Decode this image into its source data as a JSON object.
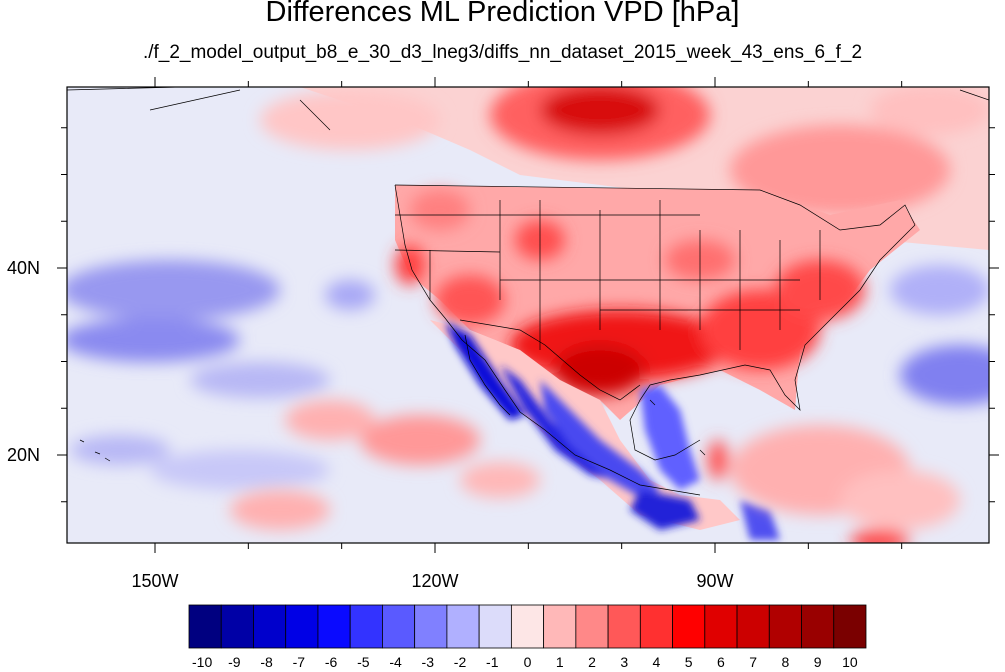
{
  "title": "Differences ML Prediction VPD [hPa]",
  "subtitle": "./f_2_model_output_b8_e_30_d3_lneg3/diffs_nn_dataset_2015_week_43_ens_6_f_2",
  "lat_ticks": [
    {
      "label": "40N",
      "value": 40
    },
    {
      "label": "20N",
      "value": 20
    }
  ],
  "lon_ticks": [
    {
      "label": "150W",
      "value": -150
    },
    {
      "label": "120W",
      "value": -120
    },
    {
      "label": "90W",
      "value": -90
    }
  ],
  "colorbar": {
    "labels": [
      "-10",
      "-9",
      "-8",
      "-7",
      "-6",
      "-5",
      "-4",
      "-3",
      "-2",
      "-1",
      "0",
      "1",
      "2",
      "3",
      "4",
      "5",
      "6",
      "7",
      "8",
      "9",
      "10"
    ],
    "colors": [
      "#000080",
      "#0000a6",
      "#0000cc",
      "#0000e6",
      "#0a0aff",
      "#3333ff",
      "#5a5aff",
      "#8080ff",
      "#b0b0ff",
      "#dcdcfa",
      "#fde6e6",
      "#ffb8b8",
      "#ff8888",
      "#ff5858",
      "#ff3030",
      "#ff0000",
      "#e00000",
      "#cc0000",
      "#b00000",
      "#990000",
      "#7a0000"
    ]
  },
  "colors": {
    "land_base": "#fbd6d6",
    "ocean_base": "#e6e8f8",
    "frame": "#000000"
  }
}
